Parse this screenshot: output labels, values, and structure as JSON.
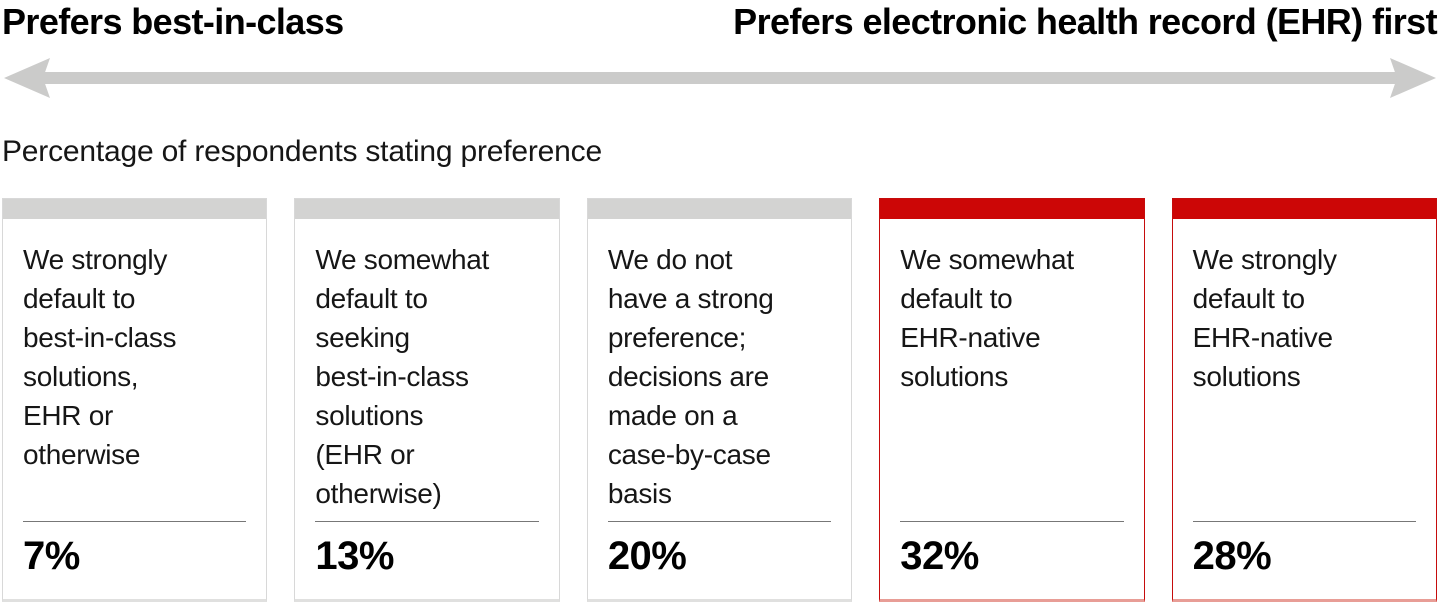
{
  "header": {
    "left_label": "Prefers best-in-class",
    "right_label": "Prefers electronic health record (EHR) first"
  },
  "subtitle": "Percentage of respondents stating preference",
  "cards": [
    {
      "variant": "gray",
      "lines": [
        "We strongly",
        "default to",
        "best-in-class",
        "solutions,",
        "EHR or",
        "otherwise"
      ],
      "value": "7%"
    },
    {
      "variant": "gray",
      "lines": [
        "We somewhat",
        "default to",
        "seeking",
        "best-in-class",
        "solutions",
        "(EHR or",
        "otherwise)"
      ],
      "value": "13%"
    },
    {
      "variant": "gray",
      "lines": [
        "We do not",
        "have a strong",
        "preference;",
        "decisions are",
        "made on a",
        "case-by-case",
        "basis"
      ],
      "value": "20%"
    },
    {
      "variant": "red",
      "lines": [
        "We somewhat",
        "default to",
        "EHR-native",
        "solutions"
      ],
      "value": "32%"
    },
    {
      "variant": "red",
      "lines": [
        "We strongly",
        "default to",
        "EHR-native",
        "solutions"
      ],
      "value": "28%"
    }
  ],
  "colors": {
    "accent_red": "#cc0606",
    "red_border": "#c60c0c",
    "bar_gray": "#d3d3d2",
    "card_border_gray": "#d8d8d8",
    "arrow_gray": "#cbcbca",
    "divider_gray": "#777777"
  },
  "chart_data": {
    "type": "bar",
    "title": "Percentage of respondents stating preference",
    "categories": [
      "We strongly default to best-in-class solutions, EHR or otherwise",
      "We somewhat default to seeking best-in-class solutions (EHR or otherwise)",
      "We do not have a strong preference; decisions are made on a case-by-case basis",
      "We somewhat default to EHR-native solutions",
      "We strongly default to EHR-native solutions"
    ],
    "values": [
      7,
      13,
      20,
      32,
      28
    ],
    "unit": "%",
    "highlighted_categories": [
      "We somewhat default to EHR-native solutions",
      "We strongly default to EHR-native solutions"
    ],
    "highlight_color": "#cc0606",
    "spectrum_axis": {
      "left": "Prefers best-in-class",
      "right": "Prefers electronic health record (EHR) first"
    },
    "legend_position": "none",
    "grid": false
  }
}
